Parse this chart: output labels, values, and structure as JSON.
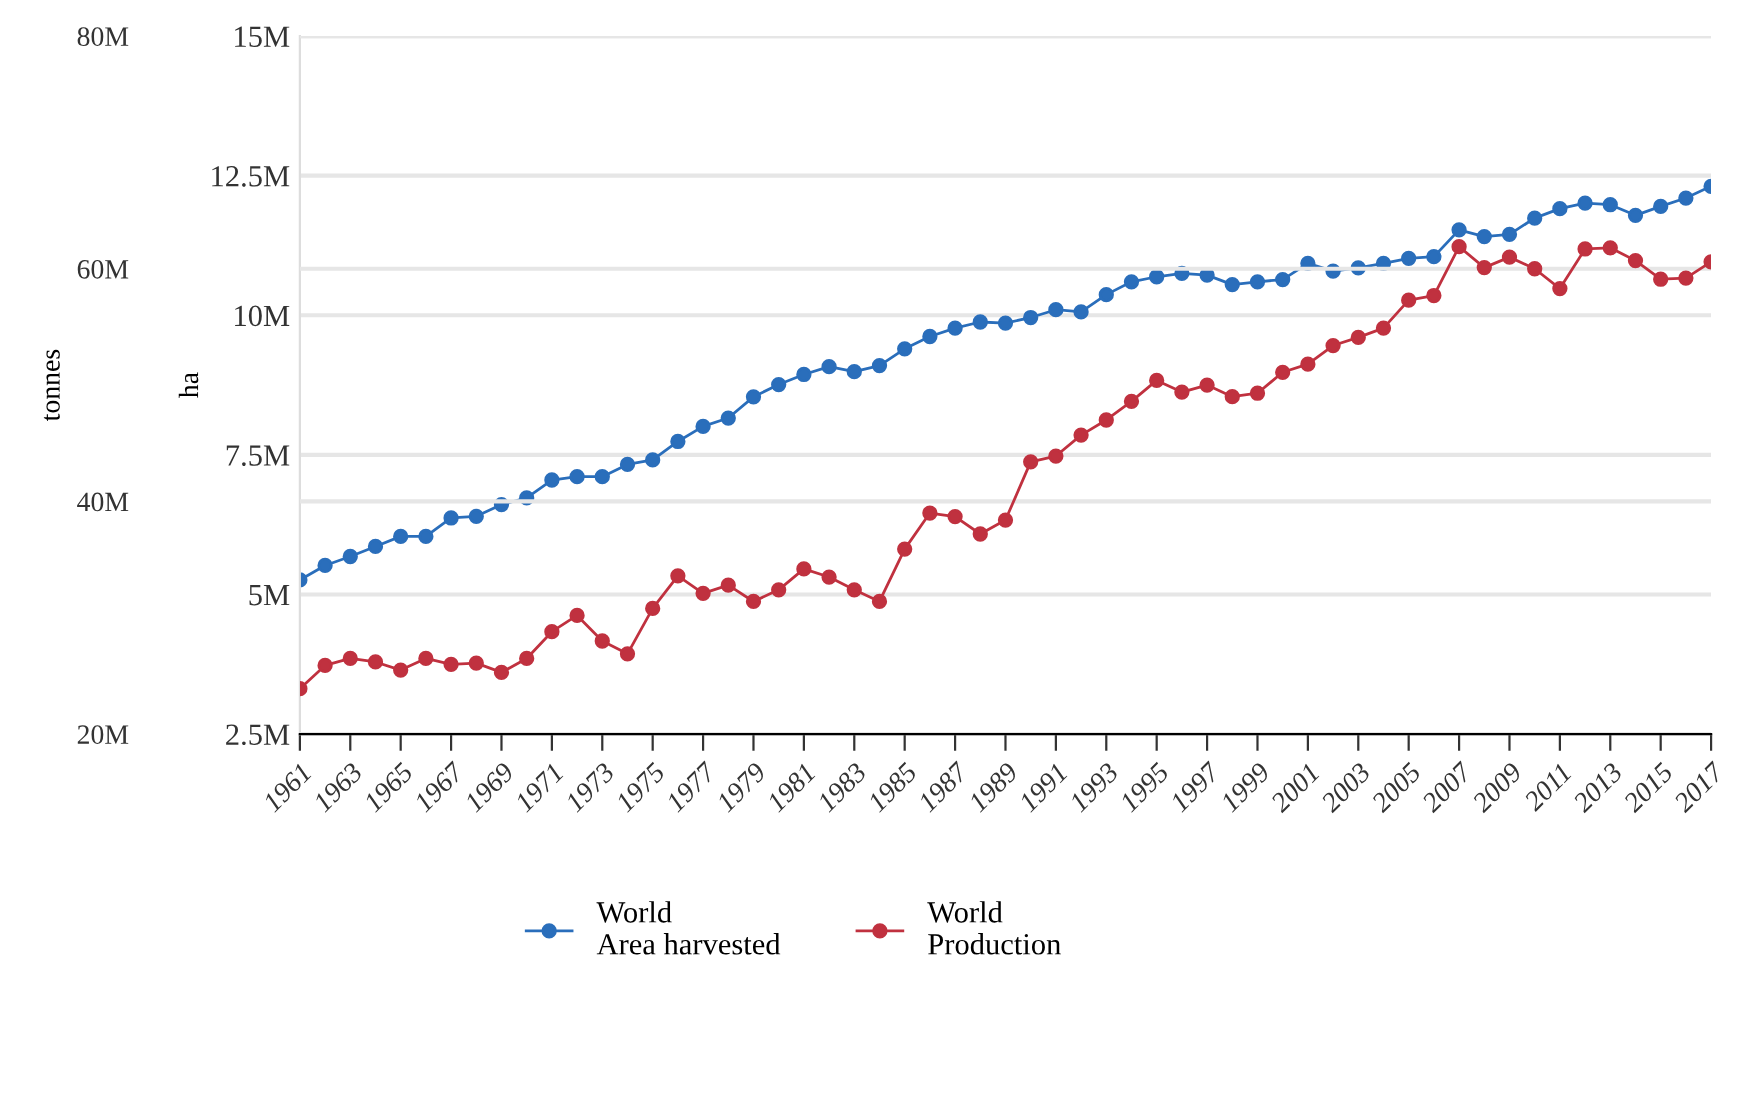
{
  "chart_data": {
    "type": "line",
    "xlabel": null,
    "ylabel": "ha",
    "y2label": "tonnes",
    "x": [
      1961,
      1962,
      1963,
      1964,
      1965,
      1966,
      1967,
      1968,
      1969,
      1970,
      1971,
      1972,
      1973,
      1974,
      1975,
      1976,
      1977,
      1978,
      1979,
      1980,
      1981,
      1982,
      1983,
      1984,
      1985,
      1986,
      1987,
      1988,
      1989,
      1990,
      1991,
      1992,
      1993,
      1994,
      1995,
      1996,
      1997,
      1998,
      1999,
      2000,
      2001,
      2002,
      2003,
      2004,
      2005,
      2006,
      2007,
      2008,
      2009,
      2010,
      2011,
      2012,
      2013,
      2014,
      2015,
      2016,
      2017
    ],
    "series": [
      {
        "name": "World\nArea harvested",
        "color": "#2a6ebb",
        "axis": "y",
        "values": [
          5.26,
          5.52,
          5.68,
          5.86,
          6.04,
          6.04,
          6.37,
          6.4,
          6.61,
          6.73,
          7.05,
          7.11,
          7.11,
          7.33,
          7.41,
          7.74,
          8.01,
          8.16,
          8.54,
          8.76,
          8.94,
          9.08,
          8.99,
          9.1,
          9.4,
          9.62,
          9.77,
          9.88,
          9.86,
          9.96,
          10.1,
          10.06,
          10.37,
          10.6,
          10.69,
          10.75,
          10.72,
          10.55,
          10.6,
          10.64,
          10.93,
          10.79,
          10.85,
          10.93,
          11.02,
          11.05,
          11.53,
          11.41,
          11.45,
          11.74,
          11.91,
          12.01,
          11.98,
          11.79,
          11.95,
          12.1,
          12.31
        ]
      },
      {
        "name": "World\nProduction",
        "color": "#c0313f",
        "axis": "y2",
        "values": [
          23.9,
          25.9,
          26.5,
          26.2,
          25.5,
          26.5,
          26.0,
          26.1,
          25.3,
          26.5,
          28.8,
          30.2,
          28.0,
          26.9,
          30.8,
          33.6,
          32.1,
          32.8,
          31.4,
          32.4,
          34.2,
          33.5,
          32.4,
          31.4,
          35.9,
          39.0,
          38.7,
          37.2,
          38.4,
          43.4,
          43.9,
          45.7,
          47.0,
          48.6,
          50.4,
          49.4,
          50.0,
          49.0,
          49.3,
          51.1,
          51.8,
          53.4,
          54.1,
          54.9,
          57.3,
          57.7,
          61.9,
          60.1,
          61.0,
          60.0,
          58.3,
          61.7,
          61.8,
          60.7,
          59.1,
          59.2,
          60.6
        ]
      }
    ],
    "xlim": [
      1961,
      2017
    ],
    "xticks": [
      1961,
      1963,
      1965,
      1967,
      1969,
      1971,
      1973,
      1975,
      1977,
      1979,
      1981,
      1983,
      1985,
      1987,
      1989,
      1991,
      1993,
      1995,
      1997,
      1999,
      2001,
      2003,
      2005,
      2007,
      2009,
      2011,
      2013,
      2015,
      2017
    ],
    "ylim": [
      2.5,
      15
    ],
    "yticks": [
      {
        "value": 2.5,
        "label": "2.5M"
      },
      {
        "value": 5,
        "label": "5M"
      },
      {
        "value": 7.5,
        "label": "7.5M"
      },
      {
        "value": 10,
        "label": "10M"
      },
      {
        "value": 12.5,
        "label": "12.5M"
      },
      {
        "value": 15,
        "label": "15M"
      }
    ],
    "y2lim": [
      20,
      80
    ],
    "y2ticks": [
      {
        "value": 20,
        "label": "20M"
      },
      {
        "value": 40,
        "label": "40M"
      },
      {
        "value": 60,
        "label": "60M"
      },
      {
        "value": 80,
        "label": "80M"
      }
    ],
    "grid": "y",
    "legend": "bottom",
    "marker": "circle",
    "line_style": "solid"
  }
}
